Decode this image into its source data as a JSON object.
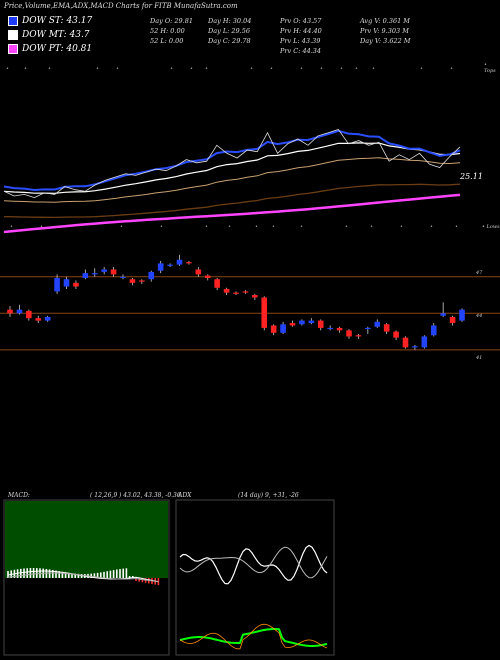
{
  "header": {
    "title": "Price,Volume,EMA,ADX,MACD Charts for FITB MunafaSutra.com"
  },
  "legend": [
    {
      "label": "DOW ST: 43.17",
      "color": "#1e3cff"
    },
    {
      "label": "DOW MT: 43.7",
      "color": "#ffffff"
    },
    {
      "label": "DOW PT: 40.81",
      "color": "#ff44ff"
    }
  ],
  "stats": [
    [
      "Day O: 29.81",
      "52 H: 0.00",
      "52 L: 0.00"
    ],
    [
      "Day H: 30.04",
      "Day L: 29.56",
      "Day C: 29.78"
    ],
    [
      "Prv O: 43.57",
      "Prv H: 44.40",
      "Prv L: 43.39",
      "Prv C: 44.34"
    ],
    [
      "Avg V: 0.361 M",
      "Prv V: 9.303 M",
      "Day V: 3.622 M"
    ]
  ],
  "chart_data": [
    {
      "type": "line",
      "name": "price-ema-panel",
      "right_label": "25.11",
      "top_marker": "• Tops",
      "bottom_marker": "• Lows",
      "price": [
        27.5,
        27.2,
        27.3,
        27.1,
        27.4,
        27.3,
        27.8,
        27.6,
        27.5,
        27.9,
        28.2,
        28.4,
        28.6,
        28.5,
        28.7,
        28.9,
        28.8,
        29.1,
        29.5,
        29.3,
        29.4,
        30.4,
        29.9,
        29.6,
        30.1,
        30.0,
        31.2,
        29.9,
        30.5,
        30.8,
        30.4,
        31.0,
        31.2,
        31.4,
        30.5,
        30.7,
        30.4,
        30.6,
        29.4,
        29.8,
        29.5,
        29.9,
        29.2,
        29.0,
        29.7,
        30.3
      ]
    },
    {
      "type": "candlestick",
      "name": "price-candles",
      "levels": [
        47,
        44,
        41
      ],
      "candles": [
        [
          44.3,
          44.0,
          44.6,
          43.7
        ],
        [
          44.0,
          44.3,
          44.7,
          43.9
        ],
        [
          44.2,
          43.6,
          44.3,
          43.4
        ],
        [
          43.6,
          43.4,
          43.8,
          43.2
        ],
        [
          43.4,
          43.7,
          43.8,
          43.3
        ],
        [
          45.8,
          46.9,
          47.2,
          45.6
        ],
        [
          46.2,
          46.8,
          47.0,
          46.0
        ],
        [
          46.5,
          46.2,
          46.7,
          46.0
        ],
        [
          46.9,
          47.3,
          47.6,
          46.8
        ],
        [
          47.2,
          47.3,
          47.7,
          47.0
        ],
        [
          47.4,
          47.6,
          47.8,
          47.2
        ],
        [
          47.6,
          47.2,
          47.8,
          47.0
        ],
        [
          47.0,
          47.0,
          47.2,
          46.8
        ],
        [
          46.8,
          46.5,
          46.9,
          46.3
        ],
        [
          46.7,
          46.6,
          46.8,
          46.4
        ],
        [
          46.8,
          47.4,
          47.5,
          46.6
        ],
        [
          47.5,
          48.1,
          48.3,
          47.3
        ],
        [
          47.9,
          48.0,
          48.1,
          47.8
        ],
        [
          48.0,
          48.4,
          48.8,
          47.9
        ],
        [
          48.2,
          48.1,
          48.3,
          48.0
        ],
        [
          47.6,
          47.2,
          47.8,
          47.0
        ],
        [
          47.1,
          46.9,
          47.2,
          46.7
        ],
        [
          46.8,
          46.1,
          46.9,
          45.9
        ],
        [
          46.0,
          45.7,
          46.1,
          45.5
        ],
        [
          45.7,
          45.6,
          45.8,
          45.5
        ],
        [
          45.8,
          45.7,
          45.9,
          45.6
        ],
        [
          45.5,
          45.3,
          45.6,
          45.1
        ],
        [
          45.3,
          42.8,
          45.4,
          42.6
        ],
        [
          43.0,
          42.4,
          43.1,
          42.2
        ],
        [
          42.4,
          43.1,
          43.3,
          42.3
        ],
        [
          43.2,
          43.0,
          43.4,
          42.9
        ],
        [
          43.1,
          43.4,
          43.5,
          43.0
        ],
        [
          43.2,
          43.4,
          43.6,
          43.1
        ],
        [
          43.4,
          42.8,
          43.5,
          42.6
        ],
        [
          42.8,
          42.8,
          43.0,
          42.6
        ],
        [
          42.8,
          42.6,
          42.9,
          42.4
        ],
        [
          42.6,
          42.1,
          42.7,
          41.9
        ],
        [
          42.2,
          42.1,
          42.3,
          41.9
        ],
        [
          42.7,
          42.8,
          42.9,
          42.3
        ],
        [
          42.9,
          43.3,
          43.5,
          42.8
        ],
        [
          43.1,
          42.5,
          43.2,
          42.3
        ],
        [
          42.5,
          42.0,
          42.6,
          41.8
        ],
        [
          42.0,
          41.2,
          42.1,
          41.1
        ],
        [
          41.3,
          41.3,
          41.4,
          41.0
        ],
        [
          41.2,
          42.1,
          42.2,
          41.1
        ],
        [
          42.2,
          43.0,
          43.2,
          42.1
        ],
        [
          43.8,
          44.0,
          44.9,
          43.7
        ],
        [
          43.7,
          43.2,
          43.8,
          43.0
        ],
        [
          43.4,
          44.3,
          44.4,
          43.3
        ]
      ]
    },
    {
      "type": "bar",
      "name": "macd-panel",
      "label": "MACD:",
      "params": "( 12,26,9 ) 43.02, 43.38, -0.36"
    },
    {
      "type": "line",
      "name": "adx-panel",
      "label": "ADX",
      "params": "(14 day) 9, +31, -26"
    }
  ]
}
